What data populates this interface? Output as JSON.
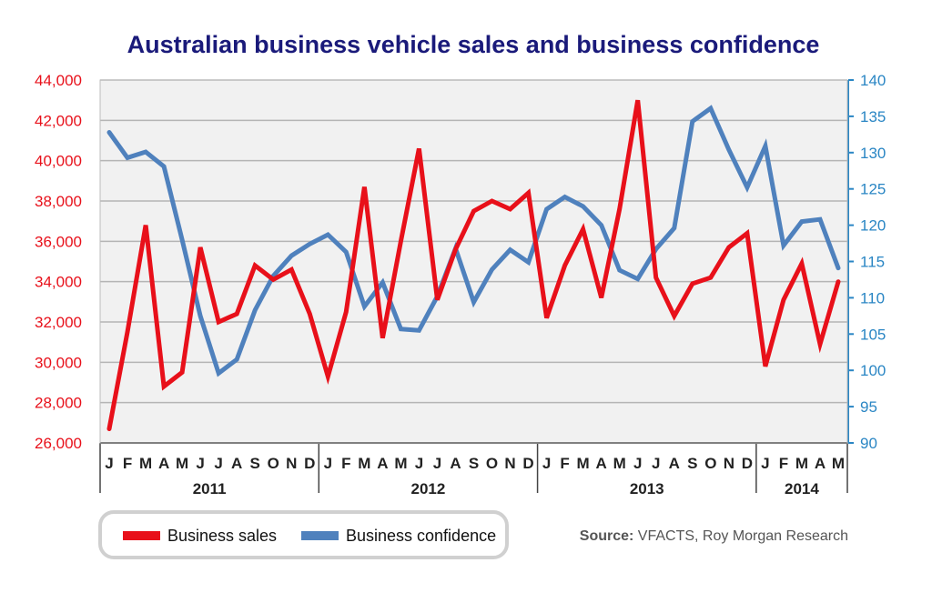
{
  "chart_data": {
    "type": "line",
    "title": "Australian business vehicle sales and business confidence",
    "x": [
      "2011-01",
      "2011-02",
      "2011-03",
      "2011-04",
      "2011-05",
      "2011-06",
      "2011-07",
      "2011-08",
      "2011-09",
      "2011-10",
      "2011-11",
      "2011-12",
      "2012-01",
      "2012-02",
      "2012-03",
      "2012-04",
      "2012-05",
      "2012-06",
      "2012-07",
      "2012-08",
      "2012-09",
      "2012-10",
      "2012-11",
      "2012-12",
      "2013-01",
      "2013-02",
      "2013-03",
      "2013-04",
      "2013-05",
      "2013-06",
      "2013-07",
      "2013-08",
      "2013-09",
      "2013-10",
      "2013-11",
      "2013-12",
      "2014-01",
      "2014-02",
      "2014-03",
      "2014-04",
      "2014-05"
    ],
    "month_labels": [
      "J",
      "F",
      "M",
      "A",
      "M",
      "J",
      "J",
      "A",
      "S",
      "O",
      "N",
      "D",
      "J",
      "F",
      "M",
      "A",
      "M",
      "J",
      "J",
      "A",
      "S",
      "O",
      "N",
      "D",
      "J",
      "F",
      "M",
      "A",
      "M",
      "J",
      "J",
      "A",
      "S",
      "O",
      "N",
      "D",
      "J",
      "F",
      "M",
      "A",
      "M"
    ],
    "year_groups": [
      {
        "label": "2011",
        "months": 12
      },
      {
        "label": "2012",
        "months": 12
      },
      {
        "label": "2013",
        "months": 12
      },
      {
        "label": "2014",
        "months": 5
      }
    ],
    "y_left": {
      "min": 26000,
      "max": 44000,
      "ticks": [
        26000,
        28000,
        30000,
        32000,
        34000,
        36000,
        38000,
        40000,
        42000,
        44000
      ],
      "tick_labels": [
        "26,000",
        "28,000",
        "30,000",
        "32,000",
        "34,000",
        "36,000",
        "38,000",
        "40,000",
        "42,000",
        "44,000"
      ],
      "color": "#e8101a"
    },
    "y_right": {
      "min": 90,
      "max": 140,
      "ticks": [
        90,
        95,
        100,
        105,
        110,
        115,
        120,
        125,
        130,
        135,
        140
      ],
      "tick_labels": [
        "90",
        "95",
        "100",
        "105",
        "110",
        "115",
        "120",
        "125",
        "130",
        "135",
        "140"
      ],
      "color": "#2a86c4"
    },
    "grid": true,
    "series": [
      {
        "name": "Business sales",
        "axis": "left",
        "color": "#e8101a",
        "values": [
          26700,
          31500,
          36800,
          28800,
          29500,
          35700,
          32000,
          32400,
          34800,
          34100,
          34600,
          32400,
          29300,
          32500,
          38700,
          31200,
          36000,
          40600,
          33100,
          35600,
          37500,
          38000,
          37600,
          38400,
          32200,
          34800,
          36600,
          33200,
          37600,
          43000,
          34200,
          32300,
          33900,
          34200,
          35700,
          36400,
          29800,
          33100,
          34900,
          30900,
          34000
        ]
      },
      {
        "name": "Business confidence",
        "axis": "right",
        "color": "#4f81bd",
        "values": [
          132.8,
          129.3,
          130.1,
          128.1,
          118.0,
          107.5,
          99.6,
          101.5,
          108.3,
          113.0,
          115.8,
          117.4,
          118.7,
          116.3,
          108.8,
          112.1,
          105.7,
          105.5,
          110.2,
          116.8,
          109.4,
          113.9,
          116.6,
          114.9,
          122.2,
          123.9,
          122.6,
          120.0,
          113.8,
          112.6,
          116.7,
          119.6,
          134.3,
          136.1,
          130.4,
          125.2,
          130.9,
          117.2,
          120.5,
          120.8,
          114.1
        ]
      }
    ],
    "legend": {
      "placement": "bottom-left",
      "entries": [
        "Business sales",
        "Business confidence"
      ]
    },
    "source_label": "Source:",
    "source_text": "VFACTS, Roy Morgan Research"
  }
}
